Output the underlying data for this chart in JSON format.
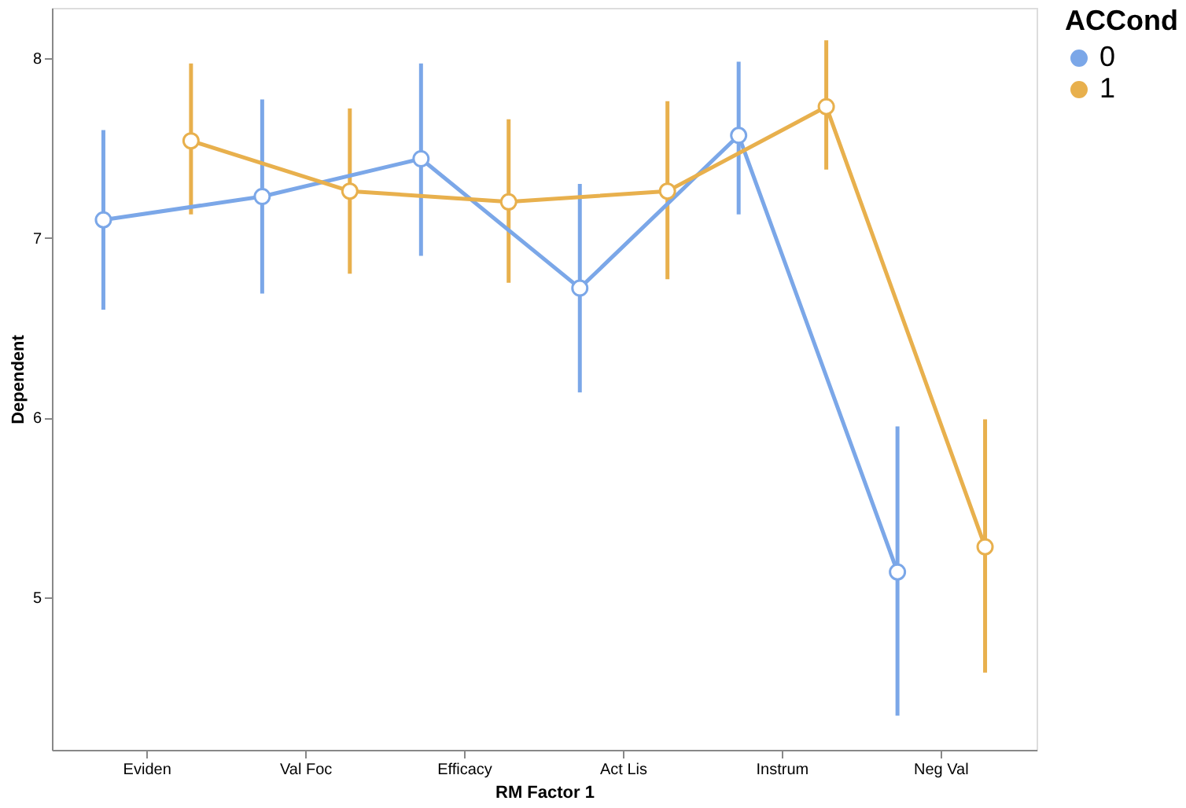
{
  "chart_data": {
    "type": "line",
    "xlabel": "RM Factor 1",
    "ylabel": "Dependent",
    "legend_title": "ACCond",
    "categories": [
      "Eviden",
      "Val Foc",
      "Efficacy",
      "Act Lis",
      "Instrum",
      "Neg Val"
    ],
    "series": [
      {
        "name": "0",
        "color": "#7ba7e8",
        "values": [
          7.1,
          7.23,
          7.44,
          6.72,
          7.57,
          5.14
        ],
        "errors": [
          [
            6.6,
            7.6
          ],
          [
            6.69,
            7.77
          ],
          [
            6.9,
            7.97
          ],
          [
            6.14,
            7.3
          ],
          [
            7.13,
            7.98
          ],
          [
            4.34,
            5.95
          ]
        ]
      },
      {
        "name": "1",
        "color": "#e8b04d",
        "values": [
          7.54,
          7.26,
          7.2,
          7.26,
          7.73,
          5.28
        ],
        "errors": [
          [
            7.13,
            7.97
          ],
          [
            6.8,
            7.72
          ],
          [
            6.75,
            7.66
          ],
          [
            6.77,
            7.76
          ],
          [
            7.38,
            8.1
          ],
          [
            4.58,
            5.99
          ]
        ]
      }
    ],
    "ylim": [
      4.15,
      8.28
    ],
    "yticks": [
      5,
      6,
      7,
      8
    ],
    "grid": false,
    "legend": "right",
    "marker": "circle",
    "line_style": "solid"
  }
}
